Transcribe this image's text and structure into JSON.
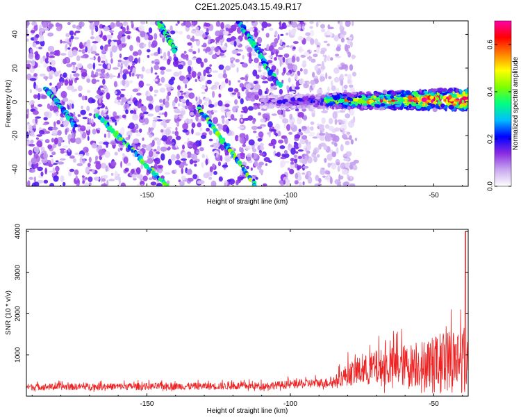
{
  "title": "C2E1.2025.043.15.49.R17",
  "chart_data": [
    {
      "type": "heatmap",
      "title": "C2E1.2025.043.15.49.R17",
      "xlabel": "Height of straight line (km)",
      "ylabel": "Frequency (Hz)",
      "xlim": [
        -192,
        -38
      ],
      "ylim": [
        -50,
        48
      ],
      "xticks": [
        -150,
        -100,
        -50
      ],
      "yticks": [
        -40,
        -20,
        0,
        20,
        40
      ],
      "colorbar": {
        "label": "Normalized spectral amplitude",
        "range": [
          0.0,
          0.7
        ],
        "ticks": [
          0.0,
          0.2,
          0.4,
          0.6
        ],
        "colors": [
          "#ffffff",
          "#c8a8f0",
          "#8a2be2",
          "#0000ff",
          "#00bfff",
          "#00ff80",
          "#7fff00",
          "#ffff00",
          "#ff8000",
          "#ff0000",
          "#ff00aa"
        ]
      },
      "features": [
        {
          "name": "noise-background",
          "x_range": [
            -192,
            -85
          ],
          "y_range": [
            -50,
            48
          ],
          "amplitude": 0.12
        },
        {
          "name": "main-signal-band",
          "x_range": [
            -110,
            -38
          ],
          "y_center": 0,
          "y_halfwidth": 5,
          "amplitude_start": 0.25,
          "amplitude_end": 0.65
        },
        {
          "name": "streak-1",
          "from": [
            -185,
            8
          ],
          "to": [
            -175,
            -14
          ],
          "amplitude": 0.25
        },
        {
          "name": "streak-2",
          "from": [
            -167,
            -8
          ],
          "to": [
            -143,
            -50
          ],
          "amplitude": 0.3
        },
        {
          "name": "streak-3",
          "from": [
            -146,
            48
          ],
          "to": [
            -140,
            30
          ],
          "amplitude": 0.28
        },
        {
          "name": "streak-4",
          "from": [
            -132,
            -3
          ],
          "to": [
            -112,
            -50
          ],
          "amplitude": 0.3
        },
        {
          "name": "streak-5",
          "from": [
            -118,
            48
          ],
          "to": [
            -104,
            10
          ],
          "amplitude": 0.25
        }
      ]
    },
    {
      "type": "line",
      "xlabel": "Height of straight line (km)",
      "ylabel": "SNR (10 * v/v)",
      "xlim": [
        -192,
        -38
      ],
      "ylim": [
        0,
        4050
      ],
      "xticks": [
        -150,
        -100,
        -50
      ],
      "yticks": [
        1000,
        2000,
        3000,
        4000
      ],
      "color": "#ee2222",
      "series_profile": [
        {
          "x": -192,
          "baseline": 200,
          "spread": 200
        },
        {
          "x": -110,
          "baseline": 220,
          "spread": 230
        },
        {
          "x": -85,
          "baseline": 300,
          "spread": 300
        },
        {
          "x": -80,
          "baseline": 450,
          "spread": 700
        },
        {
          "x": -70,
          "baseline": 550,
          "spread": 1100
        },
        {
          "x": -55,
          "baseline": 600,
          "spread": 1400
        },
        {
          "x": -45,
          "baseline": 650,
          "spread": 1900
        },
        {
          "x": -38,
          "baseline": 700,
          "spread": 2200
        }
      ],
      "peak": {
        "x": -39,
        "y": 4000
      }
    }
  ]
}
